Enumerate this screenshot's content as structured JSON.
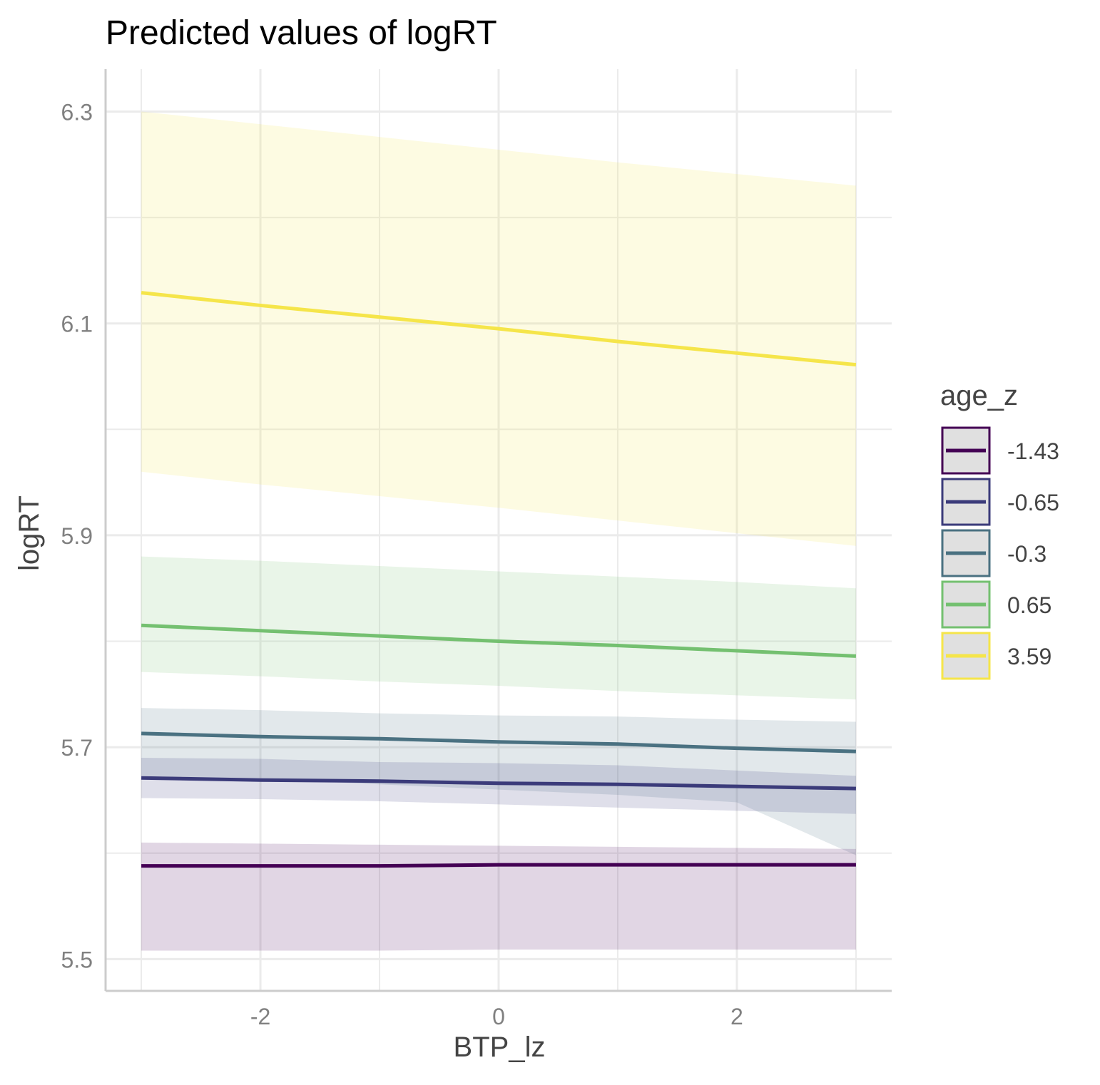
{
  "chart_data": {
    "type": "line",
    "title": "Predicted values of logRT",
    "xlabel": "BTP_lz",
    "ylabel": "logRT",
    "xlim": [
      -3.3,
      3.3
    ],
    "ylim": [
      5.47,
      6.34
    ],
    "x_ticks": [
      -2,
      0,
      2
    ],
    "x_tick_labels": [
      "-2",
      "0",
      "2"
    ],
    "y_ticks": [
      5.5,
      5.7,
      5.9,
      6.1,
      6.3
    ],
    "y_tick_labels": [
      "5.5",
      "5.7",
      "5.9",
      "6.1",
      "6.3"
    ],
    "x_minor_ticks": [
      -3,
      -1,
      1,
      3
    ],
    "y_minor_ticks": [
      5.6,
      5.8,
      6.0,
      6.2
    ],
    "grid": true,
    "confidence_bands": true,
    "legend": {
      "title": "age_z",
      "position": "right"
    },
    "x": [
      -3,
      -2,
      -1,
      0,
      1,
      2,
      3
    ],
    "series": [
      {
        "name": "-1.43",
        "color": "#440154",
        "values": [
          5.588,
          5.588,
          5.588,
          5.589,
          5.589,
          5.589,
          5.589
        ],
        "lower": [
          5.508,
          5.508,
          5.508,
          5.509,
          5.509,
          5.509,
          5.509
        ],
        "upper": [
          5.61,
          5.609,
          5.608,
          5.607,
          5.606,
          5.605,
          5.604
        ]
      },
      {
        "name": "-0.65",
        "color": "#3B3B7A",
        "values": [
          5.671,
          5.669,
          5.668,
          5.666,
          5.665,
          5.663,
          5.661
        ],
        "lower": [
          5.652,
          5.651,
          5.649,
          5.646,
          5.643,
          5.64,
          5.637
        ],
        "upper": [
          5.69,
          5.689,
          5.686,
          5.685,
          5.683,
          5.678,
          5.673
        ]
      },
      {
        "name": "-0.3",
        "color": "#4A7181",
        "values": [
          5.713,
          5.71,
          5.708,
          5.705,
          5.703,
          5.699,
          5.696
        ],
        "lower": [
          5.673,
          5.67,
          5.665,
          5.66,
          5.655,
          5.648,
          5.598
        ],
        "upper": [
          5.737,
          5.735,
          5.732,
          5.73,
          5.729,
          5.726,
          5.724
        ]
      },
      {
        "name": "0.65",
        "color": "#74C070",
        "values": [
          5.815,
          5.81,
          5.805,
          5.8,
          5.796,
          5.791,
          5.786
        ],
        "lower": [
          5.771,
          5.767,
          5.762,
          5.758,
          5.753,
          5.749,
          5.745
        ],
        "upper": [
          5.88,
          5.876,
          5.871,
          5.866,
          5.861,
          5.856,
          5.85
        ]
      },
      {
        "name": "3.59",
        "color": "#F5E54A",
        "values": [
          6.129,
          6.117,
          6.106,
          6.095,
          6.083,
          6.072,
          6.061
        ],
        "lower": [
          5.96,
          5.948,
          5.937,
          5.926,
          5.914,
          5.902,
          5.89
        ],
        "upper": [
          6.3,
          6.288,
          6.276,
          6.264,
          6.252,
          6.241,
          6.23
        ]
      }
    ]
  }
}
